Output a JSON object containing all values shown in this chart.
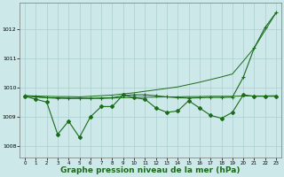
{
  "background_color": "#cce8e8",
  "grid_color": "#aacfcf",
  "line_color": "#1a6b1a",
  "xlabel": "Graphe pression niveau de la mer (hPa)",
  "xlabel_fontsize": 6.5,
  "ylim": [
    1007.6,
    1012.9
  ],
  "xlim": [
    -0.5,
    23.5
  ],
  "yticks": [
    1008,
    1009,
    1010,
    1011,
    1012
  ],
  "xticks": [
    0,
    1,
    2,
    3,
    4,
    5,
    6,
    7,
    8,
    9,
    10,
    11,
    12,
    13,
    14,
    15,
    16,
    17,
    18,
    19,
    20,
    21,
    22,
    23
  ],
  "series_jagged": [
    1009.7,
    1009.6,
    1009.5,
    1008.4,
    1008.85,
    1008.3,
    1009.0,
    1009.35,
    1009.35,
    1009.75,
    1009.65,
    1009.6,
    1009.3,
    1009.15,
    1009.2,
    1009.55,
    1009.3,
    1009.05,
    1008.95,
    1009.15,
    1009.75,
    1009.7,
    1009.7,
    1009.7
  ],
  "series_flat": [
    1009.72,
    1009.68,
    1009.65,
    1009.64,
    1009.63,
    1009.63,
    1009.63,
    1009.63,
    1009.64,
    1009.65,
    1009.66,
    1009.67,
    1009.67,
    1009.68,
    1009.68,
    1009.69,
    1009.69,
    1009.7,
    1009.7,
    1009.7,
    1009.71,
    1009.71,
    1009.71,
    1009.72
  ],
  "series_diagonal": [
    1009.72,
    1009.71,
    1009.7,
    1009.69,
    1009.69,
    1009.68,
    1009.7,
    1009.72,
    1009.74,
    1009.78,
    1009.82,
    1009.87,
    1009.92,
    1009.97,
    1010.02,
    1010.1,
    1010.18,
    1010.27,
    1010.36,
    1010.46,
    1010.9,
    1011.35,
    1011.95,
    1012.55
  ],
  "series_plus": [
    1009.72,
    1009.68,
    1009.65,
    1009.64,
    1009.63,
    1009.63,
    1009.63,
    1009.64,
    1009.65,
    1009.72,
    1009.75,
    1009.75,
    1009.72,
    1009.68,
    1009.65,
    1009.64,
    1009.65,
    1009.66,
    1009.66,
    1009.67,
    1010.35,
    1011.35,
    1012.05,
    1012.55
  ]
}
